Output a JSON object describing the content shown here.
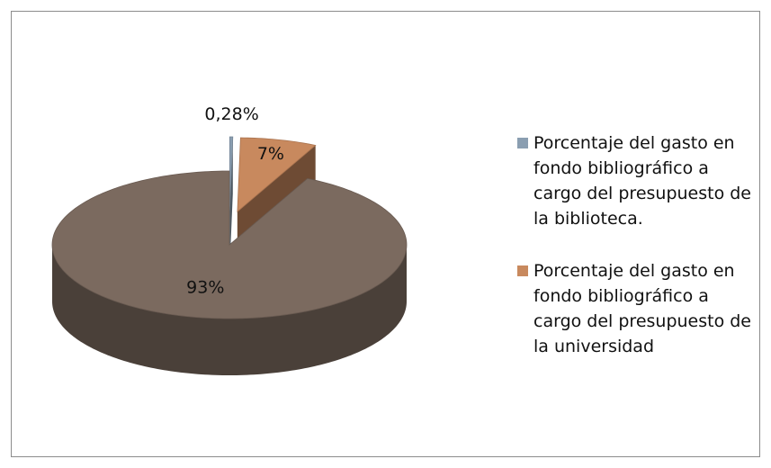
{
  "chart_data": {
    "type": "pie",
    "categories": [
      "Porcentaje del gasto en fondo bibliográfico a cargo del presupuesto de la biblioteca.",
      "Porcentaje del gasto en fondo bibliográfico a cargo del presupuesto de la universidad",
      null
    ],
    "values": [
      0.28,
      7,
      93
    ],
    "value_labels": [
      "0,28%",
      "7%",
      "93%"
    ],
    "colors": [
      "#8a9eb1",
      "#c8895e",
      "#7b6a5f"
    ],
    "legend": "right"
  }
}
